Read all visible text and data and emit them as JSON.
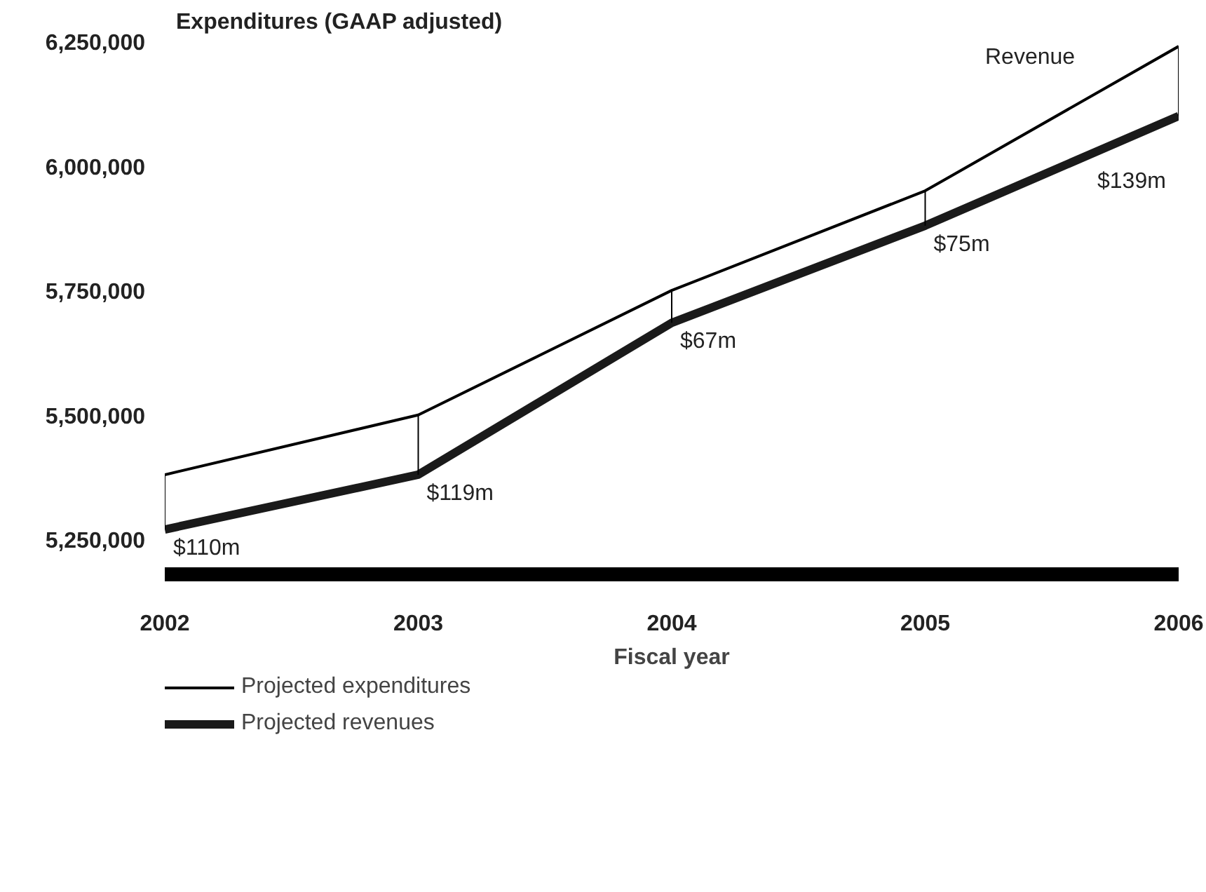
{
  "chart_data": {
    "type": "line",
    "ylabel": "Expenditures (GAAP adjusted)",
    "xlabel": "Fiscal year",
    "x": [
      2002,
      2003,
      2004,
      2005,
      2006
    ],
    "xlim": [
      2002,
      2006
    ],
    "xticks": [
      2002,
      2003,
      2004,
      2005,
      2006
    ],
    "ylim": [
      5180000,
      6250000
    ],
    "yticks": [
      {
        "value": 5250000,
        "label": "5,250,000"
      },
      {
        "value": 5500000,
        "label": "5,500,000"
      },
      {
        "value": 5750000,
        "label": "5,750,000"
      },
      {
        "value": 6000000,
        "label": "6,000,000"
      },
      {
        "value": 6250000,
        "label": "6,250,000"
      }
    ],
    "series": [
      {
        "name": "Projected expenditures",
        "color": "#000000",
        "values": [
          5380000,
          5500000,
          5750000,
          5950000,
          6240000
        ]
      },
      {
        "name": "Projected revenues",
        "color": "#1a1a1a",
        "values": [
          5270000,
          5380000,
          5685000,
          5880000,
          6100000
        ]
      }
    ],
    "annotations": [
      {
        "text": "$110m",
        "x": 2002,
        "y": 5270000
      },
      {
        "text": "$119m",
        "x": 2003,
        "y": 5380000
      },
      {
        "text": "$67m",
        "x": 2004,
        "y": 5685000
      },
      {
        "text": "$75m",
        "x": 2005,
        "y": 5880000
      },
      {
        "text": "$139m",
        "x": 2006,
        "y": 6100000
      },
      "Revenue"
    ],
    "grid": false,
    "legend": "bottom",
    "line_style": "solid"
  }
}
